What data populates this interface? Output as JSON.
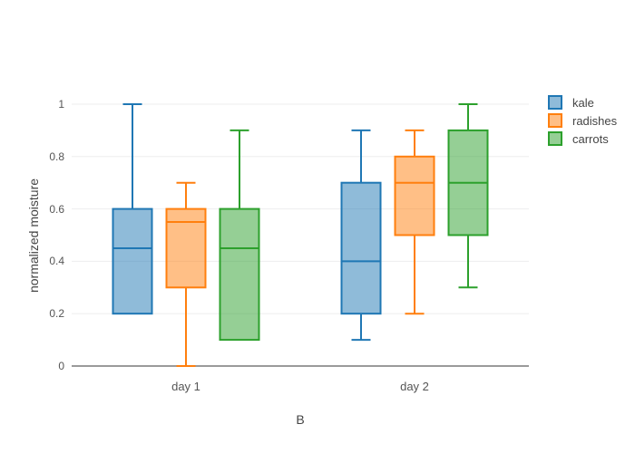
{
  "figure": {
    "background": "#ffffff",
    "grid_color": "#ededee",
    "zero_line_color": "#9a9a9a",
    "tick_color": "#555555",
    "title_color": "#444444"
  },
  "chart_data": {
    "type": "box",
    "title": "",
    "xlabel": "B",
    "ylabel": "normalized moisture",
    "categories": [
      "day 1",
      "day 2"
    ],
    "ylim": [
      0,
      1
    ],
    "yticks": [
      0,
      0.2,
      0.4,
      0.6,
      0.8,
      1
    ],
    "ytick_labels": [
      "0",
      "0.2",
      "0.4",
      "0.6",
      "0.8",
      "1"
    ],
    "grid": true,
    "legend_position": "outside-top-right",
    "series": [
      {
        "name": "kale",
        "color": "#1f77b4",
        "boxes": [
          {
            "min": 0.2,
            "q1": 0.2,
            "median": 0.45,
            "q3": 0.6,
            "max": 1.0
          },
          {
            "min": 0.1,
            "q1": 0.2,
            "median": 0.4,
            "q3": 0.7,
            "max": 0.9
          }
        ]
      },
      {
        "name": "radishes",
        "color": "#ff7f0e",
        "boxes": [
          {
            "min": 0.0,
            "q1": 0.3,
            "median": 0.55,
            "q3": 0.6,
            "max": 0.7
          },
          {
            "min": 0.2,
            "q1": 0.5,
            "median": 0.7,
            "q3": 0.8,
            "max": 0.9
          }
        ]
      },
      {
        "name": "carrots",
        "color": "#2ca02c",
        "boxes": [
          {
            "min": 0.1,
            "q1": 0.1,
            "median": 0.45,
            "q3": 0.6,
            "max": 0.9
          },
          {
            "min": 0.3,
            "q1": 0.5,
            "median": 0.7,
            "q3": 0.9,
            "max": 1.0
          }
        ]
      }
    ]
  }
}
